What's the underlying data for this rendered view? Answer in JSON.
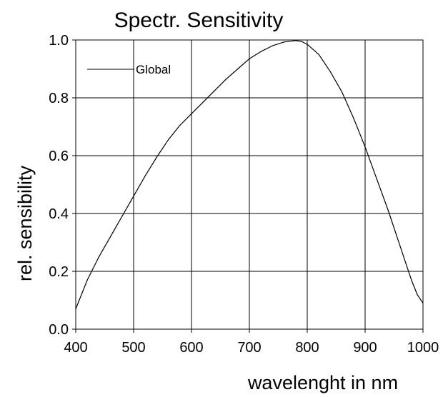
{
  "chart_data": {
    "type": "line",
    "title": "Spectr. Sensitivity",
    "xlabel": "wavelenght  in  nm",
    "ylabel": "rel. sensibility",
    "xlim": [
      400,
      1000
    ],
    "ylim": [
      0,
      1
    ],
    "x_ticks": [
      "400",
      "500",
      "600",
      "700",
      "800",
      "900",
      "1000"
    ],
    "y_ticks": [
      "0.0",
      "0.2",
      "0.4",
      "0.6",
      "0.8",
      "1.0"
    ],
    "grid": true,
    "legend_position": "top-left",
    "series": [
      {
        "name": "Global",
        "color": "#000000",
        "points": [
          [
            400,
            0.07
          ],
          [
            410,
            0.12
          ],
          [
            420,
            0.17
          ],
          [
            430,
            0.21
          ],
          [
            440,
            0.25
          ],
          [
            450,
            0.285
          ],
          [
            460,
            0.32
          ],
          [
            470,
            0.355
          ],
          [
            480,
            0.39
          ],
          [
            490,
            0.425
          ],
          [
            500,
            0.46
          ],
          [
            520,
            0.53
          ],
          [
            540,
            0.595
          ],
          [
            560,
            0.655
          ],
          [
            580,
            0.705
          ],
          [
            600,
            0.745
          ],
          [
            620,
            0.785
          ],
          [
            640,
            0.825
          ],
          [
            660,
            0.865
          ],
          [
            680,
            0.9
          ],
          [
            700,
            0.935
          ],
          [
            720,
            0.96
          ],
          [
            740,
            0.98
          ],
          [
            760,
            0.993
          ],
          [
            780,
            0.998
          ],
          [
            790,
            0.995
          ],
          [
            800,
            0.985
          ],
          [
            820,
            0.95
          ],
          [
            840,
            0.89
          ],
          [
            860,
            0.82
          ],
          [
            880,
            0.73
          ],
          [
            900,
            0.63
          ],
          [
            920,
            0.52
          ],
          [
            940,
            0.41
          ],
          [
            960,
            0.29
          ],
          [
            970,
            0.23
          ],
          [
            980,
            0.17
          ],
          [
            990,
            0.12
          ],
          [
            1000,
            0.09
          ]
        ]
      }
    ]
  }
}
